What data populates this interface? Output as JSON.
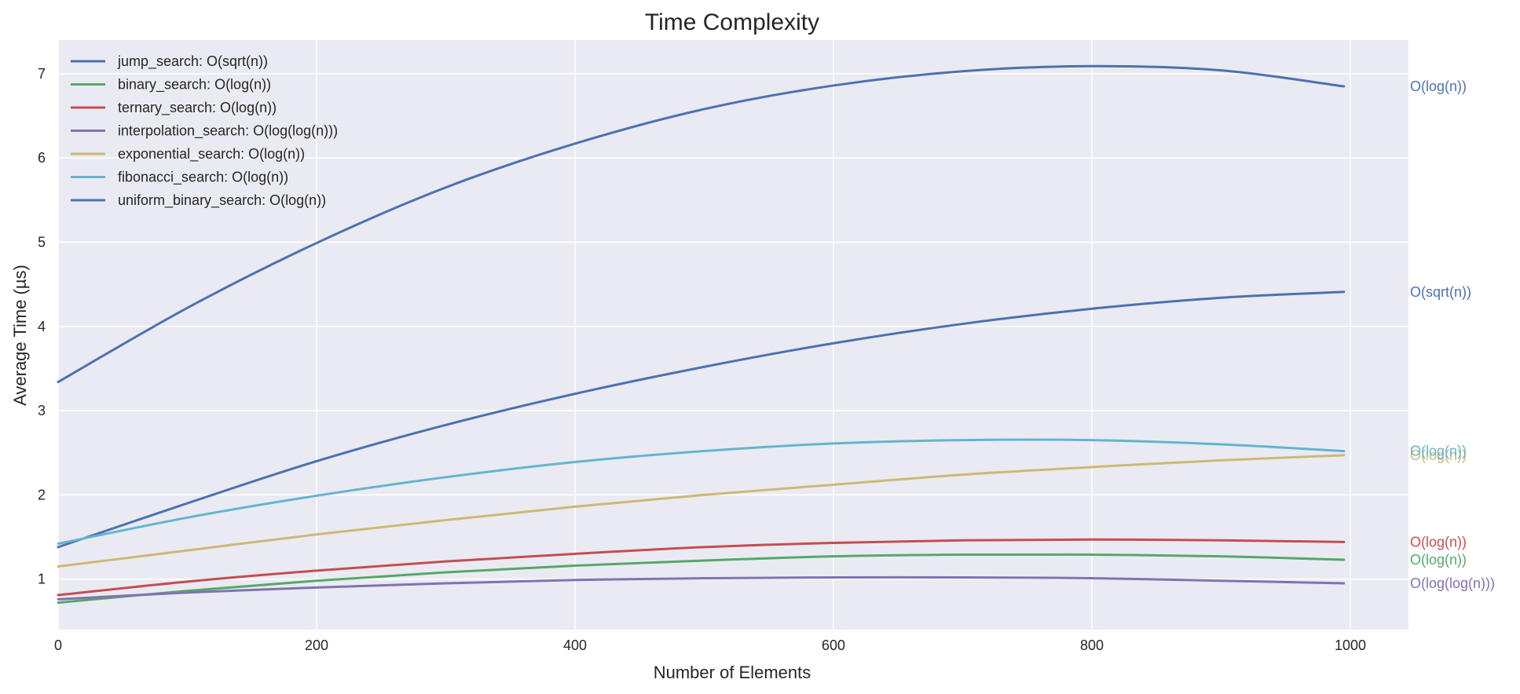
{
  "chart_data": {
    "type": "line",
    "title": "Time Complexity",
    "xlabel": "Number of Elements",
    "ylabel": "Average Time (µs)",
    "xlim": [
      0,
      1045
    ],
    "ylim": [
      0.4,
      7.4
    ],
    "xticks": [
      0,
      200,
      400,
      600,
      800,
      1000
    ],
    "yticks": [
      1,
      2,
      3,
      4,
      5,
      6,
      7
    ],
    "grid": true,
    "legend_position": "top-left",
    "x": [
      0,
      100,
      200,
      300,
      400,
      500,
      600,
      700,
      800,
      900,
      995
    ],
    "series": [
      {
        "name": "jump_search: O(sqrt(n))",
        "label": "O(sqrt(n))",
        "color": "#4c72b0",
        "values": [
          1.38,
          1.9,
          2.4,
          2.83,
          3.2,
          3.52,
          3.8,
          4.03,
          4.21,
          4.34,
          4.41
        ]
      },
      {
        "name": "binary_search: O(log(n))",
        "label": "O(log(n))",
        "color": "#55a868",
        "values": [
          0.72,
          0.86,
          0.98,
          1.08,
          1.16,
          1.22,
          1.27,
          1.29,
          1.29,
          1.27,
          1.23
        ]
      },
      {
        "name": "ternary_search: O(log(n))",
        "label": "O(log(n))",
        "color": "#c44e52",
        "values": [
          0.81,
          0.97,
          1.1,
          1.21,
          1.3,
          1.38,
          1.43,
          1.46,
          1.47,
          1.46,
          1.44
        ]
      },
      {
        "name": "interpolation_search: O(log(log(n)))",
        "label": "O(log(log(n)))",
        "color": "#8172b3",
        "values": [
          0.76,
          0.84,
          0.9,
          0.95,
          0.99,
          1.01,
          1.02,
          1.02,
          1.01,
          0.98,
          0.95
        ]
      },
      {
        "name": "exponential_search: O(log(n))",
        "label": "O(log(n))",
        "color": "#ccb974",
        "values": [
          1.15,
          1.34,
          1.53,
          1.7,
          1.86,
          2.0,
          2.12,
          2.24,
          2.33,
          2.41,
          2.47
        ]
      },
      {
        "name": "fibonacci_search: O(log(n))",
        "label": "O(log(n))",
        "color": "#64b5cd",
        "values": [
          1.42,
          1.73,
          1.99,
          2.21,
          2.39,
          2.52,
          2.61,
          2.65,
          2.65,
          2.6,
          2.52
        ]
      },
      {
        "name": "uniform_binary_search: O(log(n))",
        "label": "O(log(n))",
        "color": "#4c72b0",
        "values": [
          3.34,
          4.22,
          4.99,
          5.65,
          6.17,
          6.58,
          6.86,
          7.03,
          7.09,
          7.04,
          6.85
        ]
      }
    ]
  }
}
